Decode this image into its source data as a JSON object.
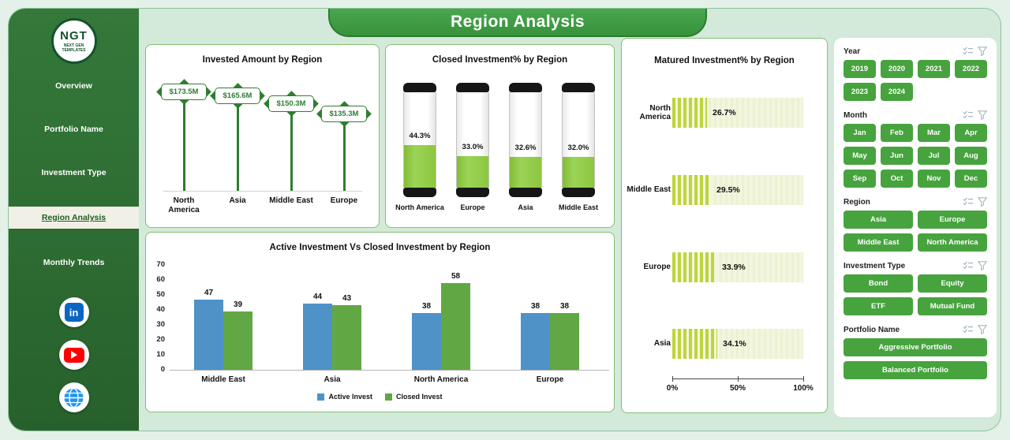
{
  "header": {
    "title": "Region Analysis"
  },
  "sidebar": {
    "logo_text": "NGT",
    "logo_subtext": "NEXT GEN TEMPLATES",
    "linkedin_glyph": "in",
    "items": [
      {
        "label": "Overview",
        "active": false
      },
      {
        "label": "Portfolio Name",
        "active": false
      },
      {
        "label": "Investment Type",
        "active": false
      },
      {
        "label": "Region Analysis",
        "active": true
      },
      {
        "label": "Monthly Trends",
        "active": false
      }
    ],
    "social_icons": [
      "linkedin-icon",
      "youtube-icon",
      "globe-icon"
    ]
  },
  "chart_data": [
    {
      "type": "lollipop",
      "title": "Invested Amount by Region",
      "categories": [
        "North America",
        "Asia",
        "Middle East",
        "Europe"
      ],
      "values": [
        173.5,
        165.6,
        150.3,
        135.3
      ],
      "labels": [
        "$173.5M",
        "$165.6M",
        "$150.3M",
        "$135.3M"
      ]
    },
    {
      "type": "cylinder-gauge",
      "title": "Closed Investment% by Region",
      "categories": [
        "North America",
        "Europe",
        "Asia",
        "Middle East"
      ],
      "values": [
        44.3,
        33.0,
        32.6,
        32.0
      ],
      "labels": [
        "44.3%",
        "33.0%",
        "32.6%",
        "32.0%"
      ]
    },
    {
      "type": "bar-horizontal",
      "title": "Matured Investment% by Region",
      "categories": [
        "North America",
        "Middle East",
        "Europe",
        "Asia"
      ],
      "values": [
        26.7,
        29.5,
        33.9,
        34.1
      ],
      "labels": [
        "26.7%",
        "29.5%",
        "33.9%",
        "34.1%"
      ],
      "xlim": [
        0,
        100
      ],
      "xticks": [
        "0%",
        "50%",
        "100%"
      ]
    },
    {
      "type": "bar",
      "title": "Active Investment Vs Closed Investment by Region",
      "categories": [
        "Middle East",
        "Asia",
        "North America",
        "Europe"
      ],
      "series": [
        {
          "name": "Active Invest",
          "color": "#4e92c8",
          "values": [
            47,
            44,
            38,
            38
          ]
        },
        {
          "name": "Closed Invest",
          "color": "#61a844",
          "values": [
            39,
            43,
            58,
            38
          ]
        }
      ],
      "ylim": [
        0,
        70
      ],
      "yticks": [
        0,
        10,
        20,
        30,
        40,
        50,
        60,
        70
      ],
      "grid": false,
      "legend_position": "bottom"
    }
  ],
  "filters": {
    "sections": [
      {
        "label": "Year",
        "cols": 4,
        "options": [
          "2019",
          "2020",
          "2021",
          "2022",
          "2023",
          "2024"
        ]
      },
      {
        "label": "Month",
        "cols": 4,
        "options": [
          "Jan",
          "Feb",
          "Mar",
          "Apr",
          "May",
          "Jun",
          "Jul",
          "Aug",
          "Sep",
          "Oct",
          "Nov",
          "Dec"
        ]
      },
      {
        "label": "Region",
        "cols": 2,
        "options": [
          "Asia",
          "Europe",
          "Middle East",
          "North America"
        ]
      },
      {
        "label": "Investment Type",
        "cols": 2,
        "options": [
          "Bond",
          "Equity",
          "ETF",
          "Mutual Fund"
        ]
      },
      {
        "label": "Portfolio Name",
        "cols": 1,
        "options": [
          "Aggressive Portfolio",
          "Balanced Portfolio"
        ]
      }
    ]
  },
  "colors": {
    "sidebar_green": "#2d6c32",
    "accent_green": "#2f7d32",
    "banner_green": "#3d9c40",
    "panel_border": "#86bf72",
    "slicer_button": "#47a33e",
    "active_invest": "#4e92c8",
    "closed_invest": "#61a844",
    "cylinder_fill": "#8dc63f",
    "stripe_fill": "#bfd43d",
    "linkedin": "#0a66c2",
    "youtube": "#fe0000"
  }
}
